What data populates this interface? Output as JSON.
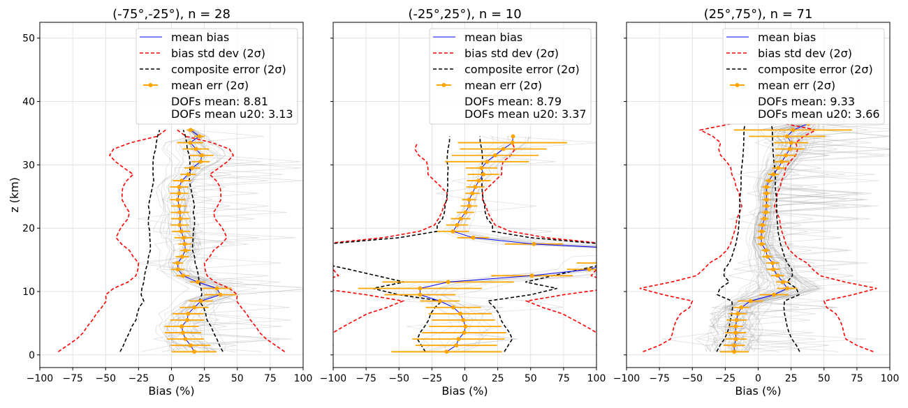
{
  "chart_data": [
    {
      "type": "line",
      "title": "(-75°,-25°), n = 28",
      "n_profiles": 28,
      "xlabel": "Bias (%)",
      "ylabel": "z (km)",
      "xlim": [
        -100,
        100
      ],
      "ylim": [
        -2,
        52.5
      ],
      "grid": true,
      "legend_placement": "top-right",
      "dofs_mean": "DOFs mean: 8.81",
      "dofs_u20": "DOFs mean u20: 3.13",
      "z": [
        0.5,
        1.5,
        2.5,
        3.5,
        4.5,
        5.5,
        6.5,
        7.5,
        8.5,
        9.5,
        10.5,
        11.5,
        12.5,
        13.5,
        14.5,
        15.5,
        16.5,
        17.5,
        18.5,
        19.5,
        20.5,
        21.5,
        22.5,
        23.5,
        24.5,
        25.5,
        26.5,
        27.5,
        28.5,
        29.5,
        30.5,
        31.5,
        32.5,
        33.5,
        34.5,
        35.5
      ],
      "mean_bias": [
        17.3,
        14.6,
        10.6,
        8.8,
        7.8,
        12.0,
        12.7,
        17.3,
        22.4,
        37.1,
        34.5,
        19.9,
        8.8,
        4.9,
        4.8,
        8.1,
        10.6,
        10.1,
        9.2,
        7.4,
        6.2,
        6.7,
        6.4,
        5.8,
        4.8,
        5.8,
        5.8,
        7.9,
        12.7,
        15.9,
        22.1,
        23.0,
        18.6,
        14.3,
        21.2,
        14.5
      ],
      "mean_err_2sigma": [
        17,
        15,
        14,
        14,
        13,
        13,
        12,
        11,
        9,
        12,
        11,
        6,
        5,
        5,
        4,
        5,
        4,
        5,
        7,
        7,
        7,
        7,
        7,
        6,
        6,
        7,
        7,
        7,
        6,
        6,
        7,
        9,
        10,
        10,
        4,
        3
      ],
      "bias_std_2sigma": [
        86,
        79,
        72,
        67,
        64,
        60,
        57,
        53,
        49.5,
        50,
        44,
        33,
        27,
        25.5,
        25,
        29,
        32,
        38,
        42,
        40,
        37,
        33,
        32,
        35,
        37.5,
        37.5,
        37,
        34,
        29,
        36,
        42.5,
        47,
        44,
        31,
        11,
        4.4
      ],
      "composite_err_2sigma": [
        39,
        36.5,
        34.5,
        32,
        30,
        27,
        26,
        24.5,
        21,
        23,
        22.5,
        21,
        20.5,
        19.5,
        18,
        17.5,
        16,
        16,
        16.5,
        16.5,
        17.5,
        17.5,
        16.5,
        17.5,
        16.5,
        15.5,
        14.5,
        13.5,
        14,
        14,
        14,
        13.5,
        12,
        11.5,
        10.6,
        9
      ]
    },
    {
      "type": "line",
      "title": "(-25°,25°), n = 10",
      "n_profiles": 10,
      "xlabel": "Bias (%)",
      "ylabel": "",
      "xlim": [
        -100,
        100
      ],
      "ylim": [
        -2,
        52.5
      ],
      "grid": true,
      "legend_placement": "top-right",
      "dofs_mean": "DOFs mean: 8.79",
      "dofs_u20": "DOFs mean u20: 3.37",
      "z": [
        0.5,
        1.5,
        2.5,
        3.5,
        4.5,
        5.5,
        6.5,
        7.5,
        8.5,
        9.5,
        10.5,
        11.5,
        12.5,
        13.5,
        14.5,
        15.5,
        16.5,
        17.5,
        18.5,
        19.5,
        20.5,
        21.5,
        22.5,
        23.5,
        24.5,
        25.5,
        26.5,
        27.5,
        28.5,
        29.5,
        30.5,
        31.5,
        32.5,
        33.5,
        34.5
      ],
      "mean_bias": [
        -13.8,
        -6.5,
        -4.8,
        -0.5,
        0.4,
        -1.2,
        -3.4,
        -8.7,
        -19,
        -34,
        -34,
        -12.7,
        51,
        94.5,
        110,
        130,
        150,
        52.5,
        6.4,
        -9,
        -5.8,
        -3.2,
        0.5,
        3.2,
        3.2,
        5.8,
        8,
        10.6,
        14.1,
        12.7,
        16.8,
        23,
        29.2,
        36.2,
        36.6
      ],
      "mean_err_2sigma": [
        42,
        31,
        35,
        32,
        27.6,
        24,
        24,
        21,
        15,
        27,
        47,
        50,
        31,
        17,
        25,
        20,
        20,
        22,
        12,
        12,
        8.4,
        7.5,
        6.6,
        6.4,
        5.4,
        5.5,
        7,
        9,
        12,
        12,
        32,
        33,
        33,
        41.5,
        0
      ],
      "bias_std_2sigma": [
        103,
        100,
        102,
        100,
        92,
        83,
        74,
        59,
        47,
        75,
        110,
        110,
        96,
        100,
        115,
        115,
        115,
        110,
        62,
        34.5,
        23,
        20,
        17.5,
        16,
        13.5,
        13.5,
        18,
        23,
        28,
        28,
        29,
        35,
        38,
        36,
        null
      ],
      "composite_err_2sigma": [
        30,
        33,
        36,
        34,
        30.5,
        27.5,
        26,
        22.5,
        17.5,
        50,
        70,
        46,
        67,
        88,
        110,
        110,
        110,
        105,
        50,
        21,
        21,
        17,
        15.5,
        15,
        14,
        13.3,
        13,
        13,
        13,
        12.7,
        13.5,
        13.3,
        12.8,
        11.7,
        11.5
      ]
    },
    {
      "type": "line",
      "title": "(25°,75°), n = 71",
      "n_profiles": 71,
      "xlabel": "Bias (%)",
      "ylabel": "",
      "xlim": [
        -100,
        100
      ],
      "ylim": [
        -2,
        52.5
      ],
      "grid": true,
      "legend_placement": "top-right",
      "dofs_mean": "DOFs mean: 9.33",
      "dofs_u20": "DOFs mean u20: 3.66",
      "z": [
        0.5,
        1.5,
        2.5,
        3.5,
        4.5,
        5.5,
        6.5,
        7.5,
        8.5,
        9.5,
        10.5,
        11.5,
        12.5,
        13.5,
        14.5,
        15.5,
        16.5,
        17.5,
        18.5,
        19.5,
        20.5,
        21.5,
        22.5,
        23.5,
        24.5,
        25.5,
        26.5,
        27.5,
        28.5,
        29.5,
        30.5,
        31.5,
        32.5,
        33.5,
        34.5,
        35.5,
        36.5
      ],
      "mean_bias": [
        -18.2,
        -18.2,
        -16.8,
        -17.1,
        -17.1,
        -16.4,
        -15.4,
        -12.7,
        -5.8,
        12,
        22,
        18.9,
        14.7,
        11.5,
        11,
        7,
        5.8,
        2.7,
        2.1,
        2.7,
        3.2,
        4.8,
        5.8,
        6.4,
        6.4,
        6.4,
        6.4,
        8.3,
        11.5,
        15.4,
        18,
        21,
        24,
        25,
        22,
        26.5,
        38
      ],
      "mean_err_2sigma": [
        11,
        8.2,
        8.2,
        8,
        5.5,
        7.7,
        6.5,
        6,
        9.7,
        11,
        7.7,
        5.3,
        5,
        5,
        5,
        4,
        3,
        3,
        3,
        3,
        3,
        3,
        3,
        3,
        3,
        3,
        3,
        3,
        4,
        5,
        6,
        8,
        11,
        13,
        29,
        45,
        8
      ],
      "bias_std_2sigma": [
        87.5,
        75,
        66.5,
        65,
        64,
        62,
        59,
        52,
        50,
        72,
        90,
        66,
        47,
        41.5,
        37,
        29,
        24,
        21,
        19.6,
        18,
        16.7,
        16.3,
        14,
        12.4,
        14,
        14.5,
        16.8,
        17.7,
        20,
        20.8,
        24,
        28.5,
        30,
        28.5,
        34.5,
        44,
        20
      ],
      "composite_err_2sigma": [
        31.5,
        29,
        25.6,
        23.4,
        22,
        21,
        20,
        19.5,
        20,
        31,
        29,
        22,
        26,
        25.6,
        22,
        20,
        18.5,
        17,
        16,
        15,
        14.8,
        14.2,
        14.2,
        14,
        14,
        13.5,
        13,
        13,
        13,
        12.5,
        12,
        11.5,
        11.2,
        11,
        10.8,
        10.8,
        10
      ]
    }
  ],
  "legend": {
    "mean_bias": "mean bias",
    "bias_std": "bias std dev (2σ)",
    "composite": "composite error (2σ)",
    "mean_err": "mean err (2σ)"
  },
  "x_ticks": [
    "−100",
    "−75",
    "−50",
    "−25",
    "0",
    "25",
    "50",
    "75",
    "100"
  ],
  "y_ticks": [
    "0",
    "10",
    "20",
    "30",
    "40",
    "50"
  ],
  "colors": {
    "mean_bias": "#0000ff",
    "bias_std": "#ff0000",
    "composite": "#000000",
    "mean_err": "#ffa500",
    "profiles": "#999999",
    "grid": "#dcdcdc"
  }
}
